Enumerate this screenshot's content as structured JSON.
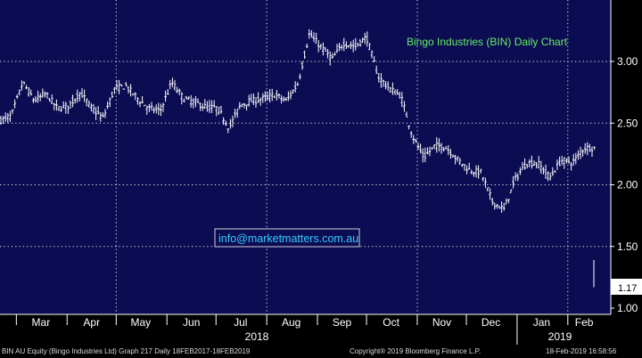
{
  "chart_data": {
    "type": "ohlc",
    "title": "Bingo Industries (BIN) Daily Chart",
    "watermark": "info@marketmatters.com.au",
    "ylim": [
      0.95,
      3.42
    ],
    "y_ticks": [
      "1.00",
      "1.50",
      "2.00",
      "2.50",
      "3.00"
    ],
    "last_price": "1.17",
    "months": [
      "Mar",
      "Apr",
      "May",
      "Jun",
      "Jul",
      "Aug",
      "Sep",
      "Oct",
      "Nov",
      "Dec",
      "Jan",
      "Feb"
    ],
    "years": [
      "2018",
      "2019"
    ],
    "colors": {
      "background": "#0c0c52",
      "bars": "#ffffff",
      "grid": "#ffffff",
      "title": "#66ee66",
      "watermark": "#33ccff"
    },
    "close_path": [
      [
        "2018-02-19",
        2.52
      ],
      [
        "2018-02-26",
        2.56
      ],
      [
        "2018-03-05",
        2.83
      ],
      [
        "2018-03-12",
        2.68
      ],
      [
        "2018-03-19",
        2.74
      ],
      [
        "2018-03-26",
        2.62
      ],
      [
        "2018-04-02",
        2.64
      ],
      [
        "2018-04-09",
        2.75
      ],
      [
        "2018-04-16",
        2.62
      ],
      [
        "2018-04-23",
        2.54
      ],
      [
        "2018-04-30",
        2.78
      ],
      [
        "2018-05-07",
        2.8
      ],
      [
        "2018-05-14",
        2.7
      ],
      [
        "2018-05-21",
        2.62
      ],
      [
        "2018-05-28",
        2.6
      ],
      [
        "2018-06-04",
        2.83
      ],
      [
        "2018-06-11",
        2.7
      ],
      [
        "2018-06-18",
        2.67
      ],
      [
        "2018-06-25",
        2.63
      ],
      [
        "2018-07-02",
        2.62
      ],
      [
        "2018-07-09",
        2.46
      ],
      [
        "2018-07-16",
        2.65
      ],
      [
        "2018-07-23",
        2.68
      ],
      [
        "2018-07-30",
        2.7
      ],
      [
        "2018-08-06",
        2.73
      ],
      [
        "2018-08-13",
        2.68
      ],
      [
        "2018-08-20",
        2.82
      ],
      [
        "2018-08-27",
        3.22
      ],
      [
        "2018-09-03",
        3.12
      ],
      [
        "2018-09-10",
        3.02
      ],
      [
        "2018-09-17",
        3.15
      ],
      [
        "2018-09-24",
        3.12
      ],
      [
        "2018-10-01",
        3.2
      ],
      [
        "2018-10-08",
        2.88
      ],
      [
        "2018-10-15",
        2.78
      ],
      [
        "2018-10-22",
        2.72
      ],
      [
        "2018-10-29",
        2.4
      ],
      [
        "2018-11-05",
        2.22
      ],
      [
        "2018-11-12",
        2.32
      ],
      [
        "2018-11-19",
        2.3
      ],
      [
        "2018-11-26",
        2.2
      ],
      [
        "2018-12-03",
        2.12
      ],
      [
        "2018-12-10",
        2.1
      ],
      [
        "2018-12-17",
        1.86
      ],
      [
        "2018-12-24",
        1.8
      ],
      [
        "2018-12-31",
        2.05
      ],
      [
        "2019-01-07",
        2.18
      ],
      [
        "2019-01-14",
        2.17
      ],
      [
        "2019-01-21",
        2.06
      ],
      [
        "2019-01-28",
        2.2
      ],
      [
        "2019-02-04",
        2.18
      ],
      [
        "2019-02-11",
        2.3
      ]
    ]
  },
  "footer": {
    "security": "BIN AU Equity (Bingo Industries Ltd) Graph 217  Daily 18FEB2017-18FEB2019",
    "copyright": "Copyright® 2019 Bloomberg Finance L.P.",
    "timestamp": "18-Feb-2019 16:58:56"
  }
}
